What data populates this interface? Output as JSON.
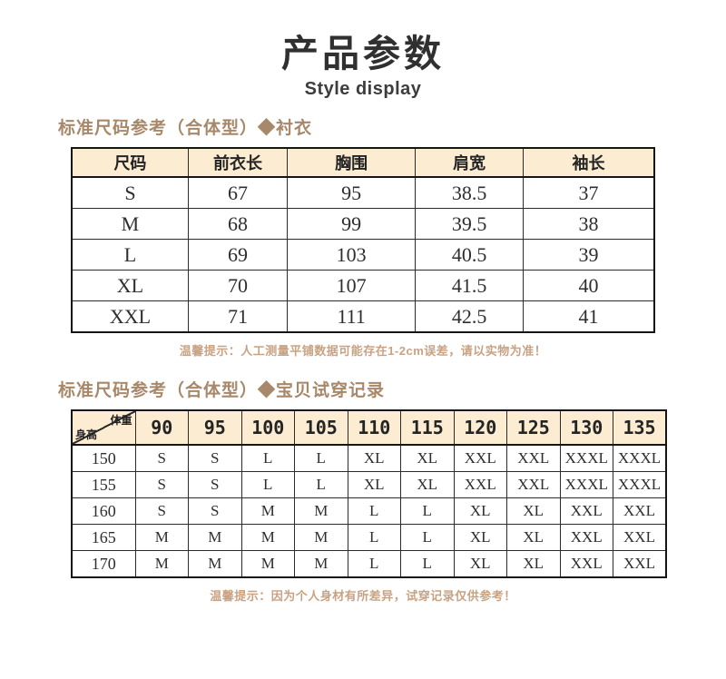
{
  "page": {
    "title": "产品参数",
    "subtitle": "Style display"
  },
  "section1": {
    "heading": "标准尺码参考（合体型）◆衬衣",
    "note": "温馨提示：人工测量平铺数据可能存在1-2cm误差，请以实物为准！",
    "table": {
      "headers": [
        "尺码",
        "前衣长",
        "胸围",
        "肩宽",
        "袖长"
      ],
      "rows": [
        [
          "S",
          "67",
          "95",
          "38.5",
          "37"
        ],
        [
          "M",
          "68",
          "99",
          "39.5",
          "38"
        ],
        [
          "L",
          "69",
          "103",
          "40.5",
          "39"
        ],
        [
          "XL",
          "70",
          "107",
          "41.5",
          "40"
        ],
        [
          "XXL",
          "71",
          "111",
          "42.5",
          "41"
        ]
      ]
    }
  },
  "section2": {
    "heading": "标准尺码参考（合体型）◆宝贝试穿记录",
    "note": "温馨提示：因为个人身材有所差异，试穿记录仅供参考！",
    "table": {
      "corner_top": "体重",
      "corner_bottom": "身高",
      "weight_headers": [
        "90",
        "95",
        "100",
        "105",
        "110",
        "115",
        "120",
        "125",
        "130",
        "135"
      ],
      "rows": [
        [
          "150",
          "S",
          "S",
          "L",
          "L",
          "XL",
          "XL",
          "XXL",
          "XXL",
          "XXXL",
          "XXXL"
        ],
        [
          "155",
          "S",
          "S",
          "L",
          "L",
          "XL",
          "XL",
          "XXL",
          "XXL",
          "XXXL",
          "XXXL"
        ],
        [
          "160",
          "S",
          "S",
          "M",
          "M",
          "L",
          "L",
          "XL",
          "XL",
          "XXL",
          "XXL"
        ],
        [
          "165",
          "M",
          "M",
          "M",
          "M",
          "L",
          "L",
          "XL",
          "XL",
          "XXL",
          "XXL"
        ],
        [
          "170",
          "M",
          "M",
          "M",
          "M",
          "L",
          "L",
          "XL",
          "XL",
          "XXL",
          "XXL"
        ]
      ]
    }
  },
  "colors": {
    "table_header_bg": "#fbecd2",
    "section_heading_text": "#a8886a",
    "note_text": "#c8a283",
    "table_border": "#151515",
    "title_text": "#303030"
  }
}
